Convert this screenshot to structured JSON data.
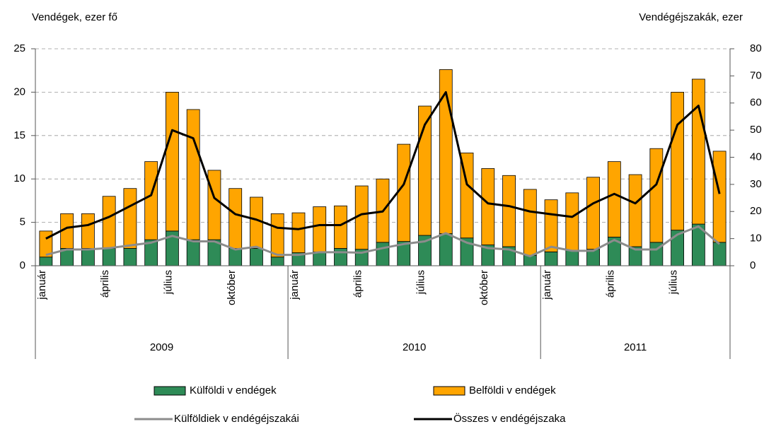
{
  "chart_data": {
    "type": "bar",
    "y_axis_label": "Vendégek, ezer fő",
    "y2_axis_label": "Vendégéjszakák, ezer",
    "groups": [
      {
        "label": "2009",
        "categories": [
          "január",
          null,
          null,
          "április",
          null,
          null,
          "július",
          null,
          null,
          "október",
          null,
          null
        ]
      },
      {
        "label": "2010",
        "categories": [
          "január",
          null,
          null,
          "április",
          null,
          null,
          "július",
          null,
          null,
          "október",
          null,
          null
        ]
      },
      {
        "label": "2011",
        "categories": [
          "január",
          null,
          null,
          "április",
          null,
          null,
          "július",
          null,
          null
        ]
      }
    ],
    "series": [
      {
        "name": "Külföldi v endégek",
        "type": "bar",
        "color": "#2e8b57",
        "values": [
          1,
          2,
          2,
          2,
          2,
          3,
          4,
          3,
          3,
          2,
          2,
          1,
          1.5,
          1.6,
          2,
          1.9,
          2.7,
          2.8,
          3.5,
          3.7,
          3.2,
          2.4,
          2.2,
          1.2,
          1.6,
          1.8,
          1.9,
          3.3,
          2.2,
          2.7,
          4.1,
          4.8,
          2.7
        ]
      },
      {
        "name": "Belföldi v endégek",
        "type": "bar",
        "color": "#ffa500",
        "values": [
          3,
          4,
          4,
          6,
          6.9,
          9,
          16,
          15,
          8,
          6.9,
          5.9,
          5,
          4.6,
          5.2,
          4.9,
          7.3,
          7.3,
          11.2,
          14.9,
          18.9,
          9.8,
          8.8,
          8.2,
          7.6,
          6,
          6.6,
          8.3,
          8.7,
          8.3,
          10.8,
          15.9,
          16.7,
          10.5
        ]
      },
      {
        "name": "Külföldiek v endégéjszakái",
        "type": "line",
        "axis": "y2",
        "color": "#8c8c8c",
        "values": [
          4,
          6,
          6,
          6.5,
          7.5,
          8.5,
          11,
          9,
          9,
          6,
          7,
          4,
          4,
          5,
          5,
          4.8,
          6.5,
          8,
          9,
          12,
          8.5,
          6.5,
          6,
          3.5,
          7,
          5.5,
          5.5,
          9.5,
          6,
          6,
          11.5,
          14.5,
          8
        ]
      },
      {
        "name": "Összes v endégéjszaka",
        "type": "line",
        "axis": "y2",
        "color": "#000000",
        "values": [
          10,
          14,
          15,
          18,
          22,
          26,
          50,
          47,
          25,
          19,
          17,
          14,
          13.5,
          15,
          15,
          19,
          20,
          30,
          52,
          64,
          30,
          23,
          22,
          20,
          19,
          18,
          23,
          26.5,
          23,
          30,
          52,
          59,
          26.5
        ]
      }
    ],
    "ylim": [
      0,
      25
    ],
    "yticks": [
      0,
      5,
      10,
      15,
      20,
      25
    ],
    "y2lim": [
      0,
      80
    ],
    "y2ticks": [
      0,
      10,
      20,
      30,
      40,
      50,
      60,
      70,
      80
    ],
    "grid": true
  }
}
